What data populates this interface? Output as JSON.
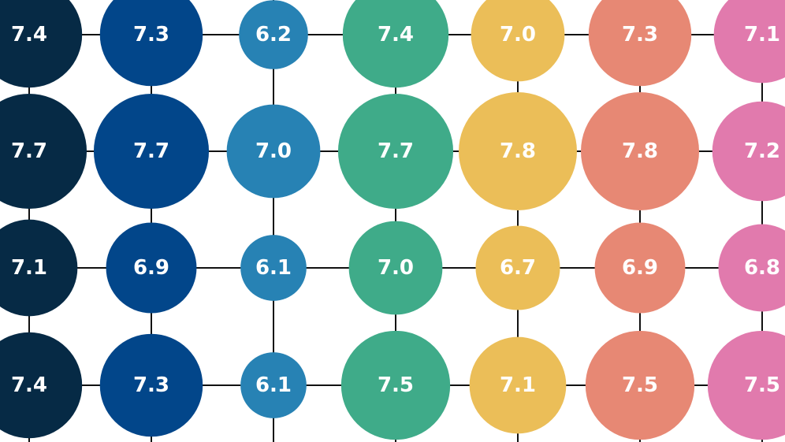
{
  "chart_data": {
    "type": "bubble-grid",
    "rows": 4,
    "columns": 7,
    "series": [
      {
        "color": "#062a45",
        "values": [
          7.4,
          7.7,
          7.1,
          7.4
        ]
      },
      {
        "color": "#02468a",
        "values": [
          7.3,
          7.7,
          6.9,
          7.3
        ]
      },
      {
        "color": "#2782b4",
        "values": [
          6.2,
          7.0,
          6.1,
          6.1
        ]
      },
      {
        "color": "#3fab89",
        "values": [
          7.4,
          7.7,
          7.0,
          7.5
        ]
      },
      {
        "color": "#ebbe58",
        "values": [
          7.0,
          7.8,
          6.7,
          7.1
        ]
      },
      {
        "color": "#e78874",
        "values": [
          7.3,
          7.8,
          6.9,
          7.5
        ]
      },
      {
        "color": "#e17aad",
        "values": [
          7.1,
          7.2,
          6.8,
          7.5
        ]
      }
    ],
    "grid": true,
    "legend": "none"
  }
}
